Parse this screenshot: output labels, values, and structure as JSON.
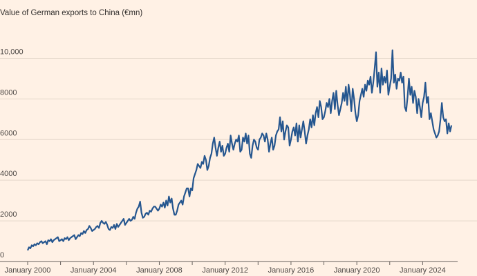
{
  "chart_data": {
    "type": "line",
    "title": "Value of German exports to China (€mn)",
    "ylim": [
      0,
      11000
    ],
    "yticks": [
      0,
      {
        "value": 2000,
        "label": "2000"
      },
      {
        "value": 4000,
        "label": "4000"
      },
      {
        "value": 6000,
        "label": "6000"
      },
      {
        "value": 8000,
        "label": "8000"
      },
      {
        "value": 10000,
        "label": "10,000"
      }
    ],
    "xlim": [
      "2000-01",
      "2026-01"
    ],
    "xticks": [
      {
        "value": "2000-01",
        "label": "January 2000"
      },
      {
        "value": "2004-01",
        "label": "January 2004"
      },
      {
        "value": "2008-01",
        "label": "January 2008"
      },
      {
        "value": "2012-01",
        "label": "January 2012"
      },
      {
        "value": "2016-01",
        "label": "January 2016"
      },
      {
        "value": "2020-01",
        "label": "January 2020"
      },
      {
        "value": "2024-01",
        "label": "January 2024"
      }
    ],
    "xminor_ticks": [
      "2002-01",
      "2006-01",
      "2010-01",
      "2014-01",
      "2018-01",
      "2022-01"
    ],
    "grid": true,
    "start": "2000-01",
    "series": [
      {
        "color": "#25568f",
        "values": [
          550,
          700,
          650,
          800,
          750,
          850,
          800,
          900,
          850,
          950,
          1000,
          900,
          950,
          1000,
          850,
          1050,
          1000,
          1100,
          950,
          1050,
          1100,
          1150,
          1200,
          1000,
          1050,
          1100,
          1000,
          1150,
          1100,
          1200,
          1050,
          1150,
          1200,
          1250,
          1300,
          1100,
          1200,
          1300,
          1250,
          1400,
          1350,
          1500,
          1400,
          1550,
          1600,
          1750,
          1650,
          1500,
          1550,
          1600,
          1700,
          1750,
          1650,
          1900,
          2000,
          1900,
          1850,
          1950,
          1800,
          1600,
          1550,
          1700,
          1650,
          1800,
          1600,
          1850,
          1700,
          1800,
          1900,
          2000,
          2100,
          1800,
          1900,
          2000,
          2100,
          2000,
          2050,
          2200,
          2100,
          2400,
          2600,
          2700,
          2950,
          2400,
          2150,
          2200,
          2350,
          2400,
          2300,
          2500,
          2450,
          2600,
          2700,
          2700,
          2600,
          2500,
          2600,
          2800,
          2700,
          2900,
          2650,
          3000,
          2750,
          3200,
          2900,
          3100,
          2600,
          2300,
          2300,
          2500,
          2800,
          2900,
          3000,
          2800,
          3200,
          3400,
          3600,
          3600,
          3200,
          3600,
          3500,
          4100,
          4300,
          4500,
          4800,
          4700,
          4600,
          4900,
          4800,
          5200,
          5000,
          4500,
          4700,
          5100,
          5300,
          5800,
          6100,
          5600,
          5200,
          5600,
          5900,
          5400,
          5700,
          5200,
          5300,
          5600,
          5800,
          5400,
          6200,
          5800,
          5500,
          5800,
          6000,
          5900,
          6200,
          5400,
          5500,
          6100,
          5900,
          6300,
          5800,
          6200,
          5300,
          5100,
          5700,
          6000,
          5900,
          5600,
          5500,
          6000,
          6100,
          6300,
          6200,
          5900,
          6300,
          6000,
          5400,
          5800,
          6100,
          5500,
          5700,
          6200,
          6400,
          6500,
          7100,
          6400,
          6900,
          6000,
          6400,
          6700,
          6600,
          5700,
          6000,
          6400,
          6600,
          6200,
          6800,
          5900,
          6700,
          6100,
          6500,
          6900,
          6400,
          5800,
          6200,
          6500,
          7000,
          6600,
          7200,
          6700,
          7300,
          7600,
          7100,
          7900,
          7600,
          7000,
          7100,
          7400,
          7800,
          7600,
          8000,
          7300,
          7900,
          8300,
          7500,
          8400,
          7700,
          7200,
          7500,
          7800,
          8300,
          7900,
          8600,
          7700,
          8700,
          8200,
          7400,
          8500,
          8000,
          7300,
          6900,
          7200,
          7900,
          8200,
          8500,
          8100,
          8700,
          8400,
          8900,
          8700,
          9100,
          8300,
          8800,
          9500,
          10300,
          8600,
          9300,
          8300,
          9500,
          8700,
          9100,
          8800,
          9400,
          8200,
          8600,
          9000,
          10400,
          8800,
          9200,
          8500,
          9000,
          8900,
          9300,
          8800,
          9100,
          7600,
          7400,
          8100,
          9000,
          8200,
          8600,
          7800,
          8400,
          8100,
          7300,
          8000,
          7600,
          7100,
          7800,
          8100,
          8800,
          7800,
          8100,
          7000,
          7300,
          6900,
          6500,
          6300,
          6100,
          6200,
          6400,
          7000,
          7800,
          7100,
          6900,
          7000,
          6300,
          6800,
          6400,
          6700
        ]
      }
    ]
  }
}
